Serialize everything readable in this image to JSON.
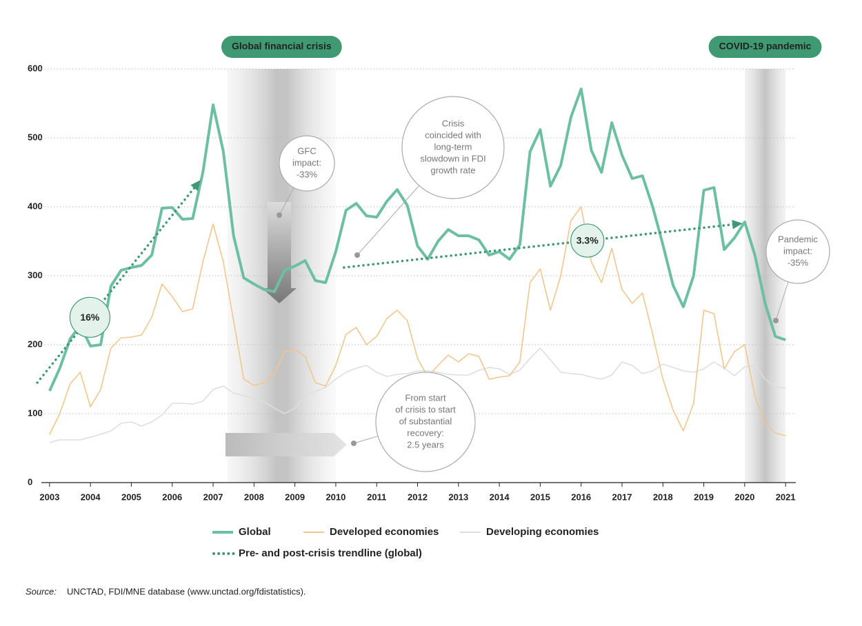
{
  "chart_data": {
    "type": "line",
    "x": [
      2003,
      2003.25,
      2003.5,
      2003.75,
      2004,
      2004.25,
      2004.5,
      2004.75,
      2005,
      2005.25,
      2005.5,
      2005.75,
      2006,
      2006.25,
      2006.5,
      2006.75,
      2007,
      2007.25,
      2007.5,
      2007.75,
      2008,
      2008.25,
      2008.5,
      2008.75,
      2009,
      2009.25,
      2009.5,
      2009.75,
      2010,
      2010.25,
      2010.5,
      2010.75,
      2011,
      2011.25,
      2011.5,
      2011.75,
      2012,
      2012.25,
      2012.5,
      2012.75,
      2013,
      2013.25,
      2013.5,
      2013.75,
      2014,
      2014.25,
      2014.5,
      2014.75,
      2015,
      2015.25,
      2015.5,
      2015.75,
      2016,
      2016.25,
      2016.5,
      2016.75,
      2017,
      2017.25,
      2017.5,
      2017.75,
      2018,
      2018.25,
      2018.5,
      2018.75,
      2019,
      2019.25,
      2019.5,
      2019.75,
      2020,
      2020.25,
      2020.5,
      2020.75,
      2021
    ],
    "series": [
      {
        "name": "Global",
        "color": "#6dbfa3",
        "values": [
          133,
          166,
          208,
          228,
          198,
          200,
          285,
          308,
          312,
          315,
          330,
          398,
          399,
          382,
          383,
          450,
          548,
          480,
          358,
          297,
          288,
          280,
          277,
          308,
          314,
          322,
          293,
          290,
          335,
          395,
          405,
          387,
          385,
          408,
          425,
          402,
          343,
          324,
          350,
          367,
          358,
          358,
          352,
          330,
          335,
          324,
          345,
          480,
          512,
          430,
          460,
          530,
          571,
          482,
          450,
          522,
          475,
          441,
          445,
          400,
          345,
          286,
          255,
          300,
          424,
          428,
          338,
          355,
          378,
          330,
          260,
          212,
          207
        ]
      },
      {
        "name": "Developed economies",
        "color": "#f2c68e",
        "values": [
          70,
          100,
          143,
          160,
          110,
          135,
          195,
          210,
          211,
          214,
          240,
          288,
          270,
          248,
          252,
          320,
          375,
          320,
          235,
          150,
          141,
          145,
          158,
          190,
          193,
          183,
          145,
          140,
          170,
          215,
          225,
          200,
          212,
          238,
          250,
          235,
          180,
          153,
          170,
          185,
          175,
          187,
          183,
          150,
          153,
          155,
          175,
          290,
          310,
          250,
          300,
          380,
          400,
          320,
          290,
          340,
          280,
          260,
          275,
          215,
          150,
          105,
          75,
          115,
          250,
          245,
          165,
          190,
          200,
          125,
          85,
          72,
          68
        ]
      },
      {
        "name": "Developing economies",
        "color": "#dedede",
        "values": [
          58,
          62,
          62,
          62,
          66,
          70,
          75,
          86,
          88,
          82,
          88,
          98,
          115,
          115,
          114,
          118,
          135,
          140,
          130,
          126,
          122,
          117,
          108,
          100,
          108,
          128,
          132,
          138,
          150,
          160,
          166,
          170,
          160,
          154,
          157,
          158,
          162,
          162,
          160,
          157,
          156,
          156,
          163,
          167,
          165,
          157,
          163,
          180,
          195,
          178,
          160,
          158,
          157,
          153,
          150,
          156,
          175,
          170,
          158,
          162,
          172,
          167,
          162,
          160,
          165,
          175,
          166,
          155,
          168,
          170,
          150,
          139,
          137
        ]
      }
    ],
    "trendline": {
      "name": "Pre- and post-crisis trendline (global)",
      "color": "#3f9a74",
      "segments": [
        {
          "label": "16%",
          "x": [
            2002.7,
            2006.6
          ],
          "values": [
            145,
            432
          ]
        },
        {
          "label": "3.3%",
          "x": [
            2010.2,
            2019.8
          ],
          "values": [
            312,
            375
          ]
        }
      ]
    },
    "periods": [
      {
        "label": "Global financial crisis",
        "start": 2007.35,
        "end": 2010
      },
      {
        "label": "COVID-19 pandemic",
        "start": 2020,
        "end": 2021
      }
    ],
    "annotations": [
      {
        "lines": [
          "GFC",
          "impact:",
          "-33%"
        ]
      },
      {
        "lines": [
          "Crisis",
          "coincided with",
          "long-term",
          "slowdown in FDI",
          "growth rate"
        ]
      },
      {
        "lines": [
          "From start",
          "of crisis to start",
          "of substantial",
          "recovery:",
          "2.5 years"
        ]
      },
      {
        "lines": [
          "Pandemic",
          "impact:",
          "-35%"
        ]
      }
    ],
    "xlim": [
      2002.8,
      2021.25
    ],
    "xticks": [
      2003,
      2004,
      2005,
      2006,
      2007,
      2008,
      2009,
      2010,
      2011,
      2012,
      2013,
      2014,
      2015,
      2016,
      2017,
      2018,
      2019,
      2020,
      2021
    ],
    "ylim": [
      0,
      600
    ],
    "yticks": [
      0,
      100,
      200,
      300,
      400,
      500,
      600
    ],
    "grid": true,
    "source_label": "Source:",
    "source": "UNCTAD, FDI/MNE database (www.unctad.org/fdistatistics)."
  }
}
